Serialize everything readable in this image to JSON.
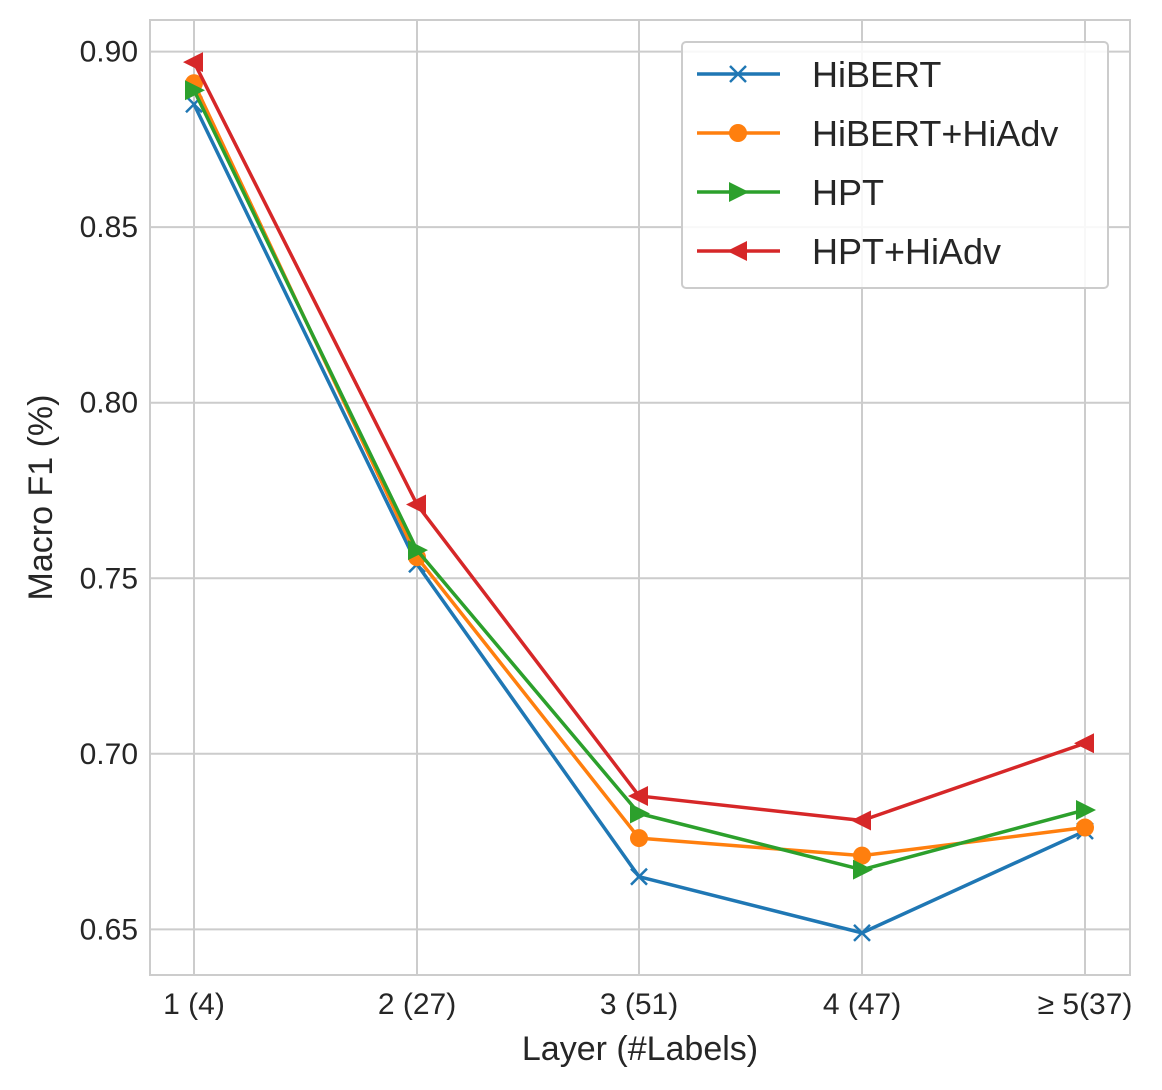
{
  "chart_data": {
    "type": "line",
    "title": "",
    "xlabel": "Layer (#Labels)",
    "ylabel": "Macro F1 (%)",
    "categories": [
      "1 (4)",
      "2 (27)",
      "3 (51)",
      "4 (47)",
      "≥ 5(37)"
    ],
    "ylim": [
      0.637,
      0.909
    ],
    "yticks": [
      0.65,
      0.7,
      0.75,
      0.8,
      0.85,
      0.9
    ],
    "ytick_labels": [
      "0.65",
      "0.70",
      "0.75",
      "0.80",
      "0.85",
      "0.90"
    ],
    "grid": true,
    "legend_position": "top-right",
    "series": [
      {
        "name": "HiBERT",
        "color": "#1f77b4",
        "marker": "x",
        "values": [
          0.885,
          0.754,
          0.665,
          0.649,
          0.678
        ]
      },
      {
        "name": "HiBERT+HiAdv",
        "color": "#ff7f0e",
        "marker": "circle",
        "values": [
          0.891,
          0.756,
          0.676,
          0.671,
          0.679
        ]
      },
      {
        "name": "HPT",
        "color": "#2ca02c",
        "marker": "triangle-right",
        "values": [
          0.889,
          0.758,
          0.683,
          0.667,
          0.684
        ]
      },
      {
        "name": "HPT+HiAdv",
        "color": "#d62728",
        "marker": "triangle-left",
        "values": [
          0.897,
          0.771,
          0.688,
          0.681,
          0.703
        ]
      }
    ]
  }
}
